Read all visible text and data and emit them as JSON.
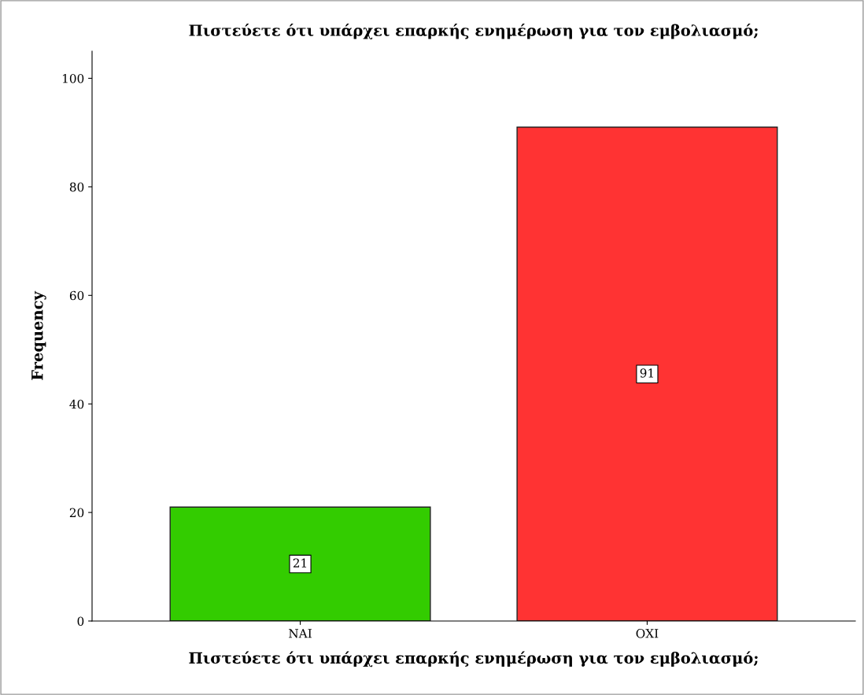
{
  "chart_data": {
    "type": "bar",
    "title": "Πιστεύετε ότι υπάρχει επαρκής ενημέρωση για τον εμβολιασμό;",
    "xlabel": "Πιστεύετε ότι υπάρχει επαρκής ενημέρωση για τον εμβολιασμό;",
    "ylabel": "Frequency",
    "categories": [
      "ΝΑΙ",
      "ΟΧΙ"
    ],
    "values": [
      21,
      91
    ],
    "colors": [
      "#33cc00",
      "#ff3333"
    ],
    "ylim": [
      0,
      105
    ],
    "yticks": [
      0,
      20,
      40,
      60,
      80,
      100
    ],
    "data_labels": true,
    "grid": false,
    "legend": false
  }
}
